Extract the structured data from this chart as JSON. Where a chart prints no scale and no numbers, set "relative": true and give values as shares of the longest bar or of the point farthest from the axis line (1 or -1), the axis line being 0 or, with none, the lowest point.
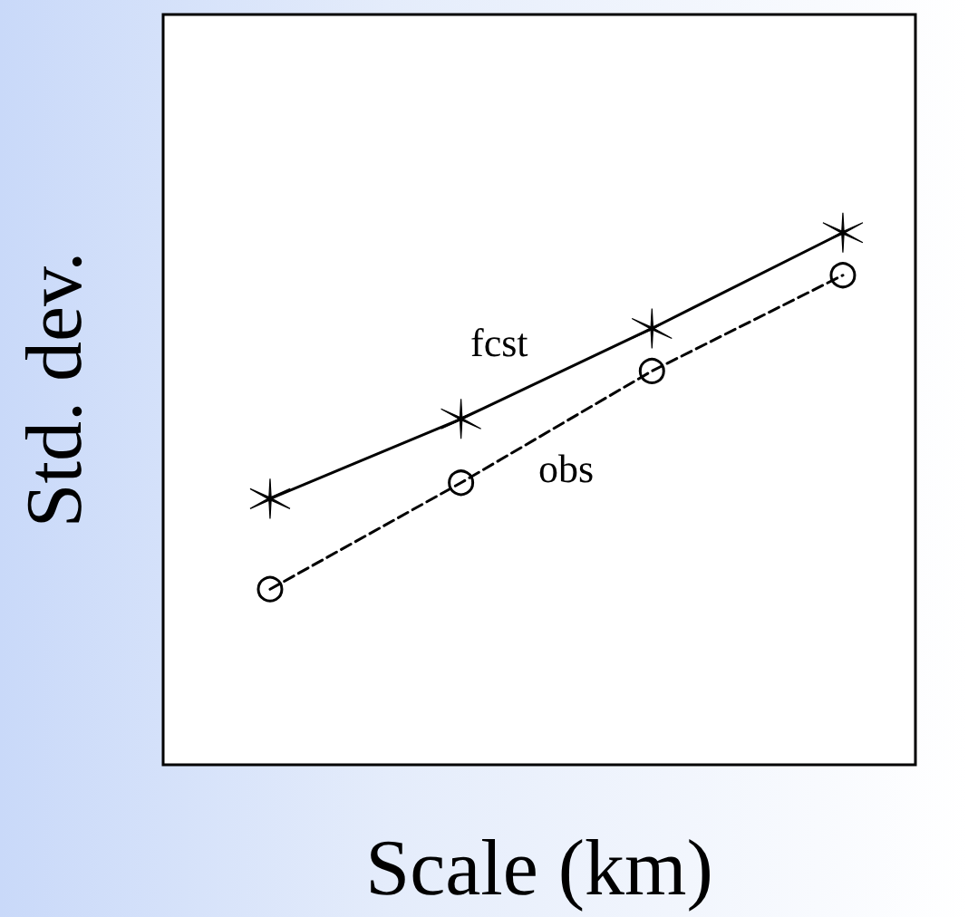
{
  "chart_data": {
    "type": "line",
    "xlabel": "Scale (km)",
    "ylabel": "Std. dev.",
    "relative": true,
    "categories": [
      null,
      null,
      null,
      null
    ],
    "grid": false,
    "legend": false,
    "series": [
      {
        "name": "fcst",
        "color": "#000000",
        "values": [
          0.5,
          0.65,
          0.82,
          1
        ],
        "marker": "cross",
        "line_style": "solid"
      },
      {
        "name": "obs",
        "color": "#000000",
        "values": [
          0.33,
          0.53,
          0.74,
          0.92
        ],
        "marker": "circle",
        "line_style": "dashed"
      }
    ]
  }
}
